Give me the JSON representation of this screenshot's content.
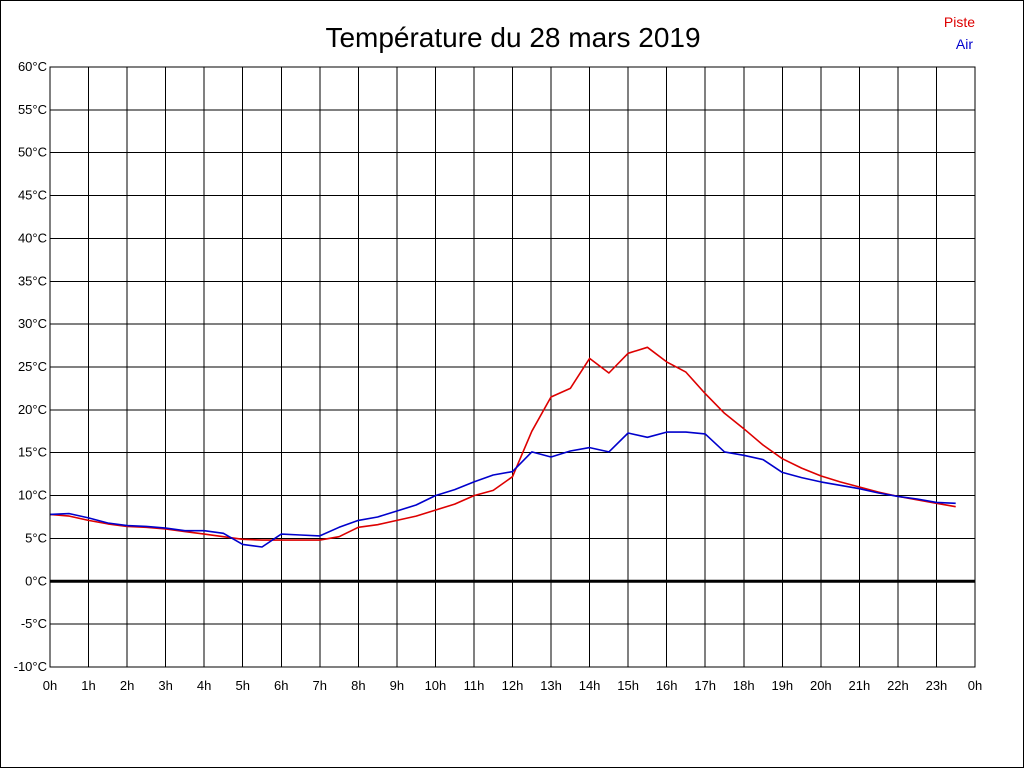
{
  "chart_data": {
    "type": "line",
    "title": "Température du 28 mars 2019",
    "xlabel": "",
    "ylabel": "",
    "x_unit": "hour",
    "xlim": [
      0,
      24
    ],
    "ylim": [
      -10,
      60
    ],
    "y_ticks": [
      -10,
      -5,
      0,
      5,
      10,
      15,
      20,
      25,
      30,
      35,
      40,
      45,
      50,
      55,
      60
    ],
    "y_tick_labels": [
      "-10°C",
      "-5°C",
      "0°C",
      "5°C",
      "10°C",
      "15°C",
      "20°C",
      "25°C",
      "30°C",
      "35°C",
      "40°C",
      "45°C",
      "50°C",
      "55°C",
      "60°C"
    ],
    "x_ticks": [
      0,
      1,
      2,
      3,
      4,
      5,
      6,
      7,
      8,
      9,
      10,
      11,
      12,
      13,
      14,
      15,
      16,
      17,
      18,
      19,
      20,
      21,
      22,
      23,
      24
    ],
    "x_tick_labels": [
      "0h",
      "1h",
      "2h",
      "3h",
      "4h",
      "5h",
      "6h",
      "7h",
      "8h",
      "9h",
      "10h",
      "11h",
      "12h",
      "13h",
      "14h",
      "15h",
      "16h",
      "17h",
      "18h",
      "19h",
      "20h",
      "21h",
      "22h",
      "23h",
      "0h"
    ],
    "grid": true,
    "zero_line": true,
    "legend_position": "top-right",
    "series": [
      {
        "name": "Piste",
        "color": "#dd0000",
        "points": [
          [
            0,
            7.8
          ],
          [
            0.5,
            7.6
          ],
          [
            1,
            7.1
          ],
          [
            1.5,
            6.7
          ],
          [
            2,
            6.4
          ],
          [
            2.5,
            6.3
          ],
          [
            3,
            6.1
          ],
          [
            3.5,
            5.8
          ],
          [
            4,
            5.5
          ],
          [
            4.5,
            5.2
          ],
          [
            5,
            4.9
          ],
          [
            5.5,
            4.8
          ],
          [
            6,
            4.8
          ],
          [
            6.5,
            4.8
          ],
          [
            7,
            4.8
          ],
          [
            7.5,
            5.2
          ],
          [
            8,
            6.3
          ],
          [
            8.5,
            6.6
          ],
          [
            9,
            7.1
          ],
          [
            9.5,
            7.6
          ],
          [
            10,
            8.3
          ],
          [
            10.5,
            9.0
          ],
          [
            11,
            10.0
          ],
          [
            11.5,
            10.6
          ],
          [
            12,
            12.2
          ],
          [
            12.5,
            17.5
          ],
          [
            13,
            21.5
          ],
          [
            13.5,
            22.5
          ],
          [
            14,
            26.0
          ],
          [
            14.5,
            24.3
          ],
          [
            15,
            26.6
          ],
          [
            15.5,
            27.3
          ],
          [
            16,
            25.6
          ],
          [
            16.5,
            24.4
          ],
          [
            17,
            21.9
          ],
          [
            17.5,
            19.6
          ],
          [
            18,
            17.8
          ],
          [
            18.5,
            15.9
          ],
          [
            19,
            14.3
          ],
          [
            19.5,
            13.2
          ],
          [
            20,
            12.3
          ],
          [
            20.5,
            11.6
          ],
          [
            21,
            11.0
          ],
          [
            21.5,
            10.4
          ],
          [
            22,
            9.9
          ],
          [
            22.5,
            9.5
          ],
          [
            23,
            9.1
          ],
          [
            23.5,
            8.7
          ]
        ]
      },
      {
        "name": "Air",
        "color": "#0000cc",
        "points": [
          [
            0,
            7.8
          ],
          [
            0.5,
            7.9
          ],
          [
            1,
            7.4
          ],
          [
            1.5,
            6.8
          ],
          [
            2,
            6.5
          ],
          [
            2.5,
            6.4
          ],
          [
            3,
            6.2
          ],
          [
            3.5,
            5.9
          ],
          [
            4,
            5.9
          ],
          [
            4.5,
            5.6
          ],
          [
            5,
            4.3
          ],
          [
            5.5,
            4.0
          ],
          [
            6,
            5.5
          ],
          [
            6.5,
            5.4
          ],
          [
            7,
            5.3
          ],
          [
            7.5,
            6.3
          ],
          [
            8,
            7.1
          ],
          [
            8.5,
            7.5
          ],
          [
            9,
            8.2
          ],
          [
            9.5,
            8.9
          ],
          [
            10,
            10.0
          ],
          [
            10.5,
            10.7
          ],
          [
            11,
            11.6
          ],
          [
            11.5,
            12.4
          ],
          [
            12,
            12.8
          ],
          [
            12.5,
            15.1
          ],
          [
            13,
            14.5
          ],
          [
            13.5,
            15.2
          ],
          [
            14,
            15.6
          ],
          [
            14.5,
            15.1
          ],
          [
            15,
            17.3
          ],
          [
            15.5,
            16.8
          ],
          [
            16,
            17.4
          ],
          [
            16.5,
            17.4
          ],
          [
            17,
            17.2
          ],
          [
            17.5,
            15.1
          ],
          [
            18,
            14.7
          ],
          [
            18.5,
            14.2
          ],
          [
            19,
            12.7
          ],
          [
            19.5,
            12.1
          ],
          [
            20,
            11.6
          ],
          [
            20.5,
            11.2
          ],
          [
            21,
            10.8
          ],
          [
            21.5,
            10.3
          ],
          [
            22,
            9.9
          ],
          [
            22.5,
            9.6
          ],
          [
            23,
            9.2
          ],
          [
            23.5,
            9.1
          ]
        ]
      }
    ]
  }
}
